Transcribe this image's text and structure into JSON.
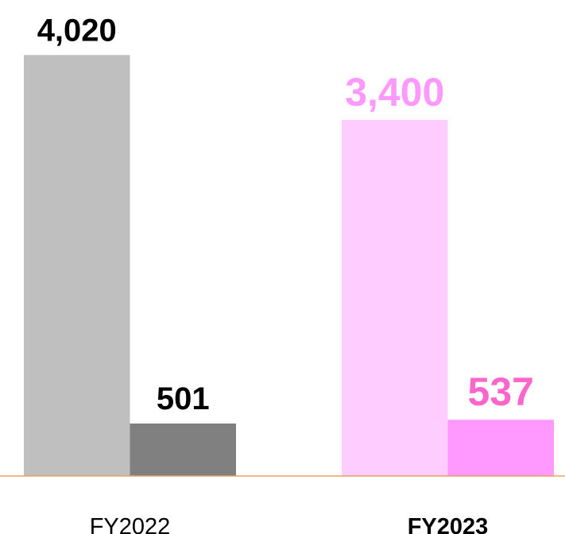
{
  "chart_data": {
    "type": "bar",
    "categories": [
      "FY2022",
      "FY2023"
    ],
    "category_bold": [
      false,
      true
    ],
    "series": [
      {
        "values": [
          4020,
          3400
        ],
        "value_labels": [
          "4,020",
          "3,400"
        ],
        "colors": [
          "#bfbfbf",
          "#ffccff"
        ],
        "label_colors": [
          "#000000",
          "#ff99ff"
        ]
      },
      {
        "values": [
          501,
          537
        ],
        "value_labels": [
          "501",
          "537"
        ],
        "colors": [
          "#808080",
          "#ff99ff"
        ],
        "label_colors": [
          "#000000",
          "#ff66cc"
        ]
      }
    ],
    "ylim": [
      0,
      4500
    ],
    "baseline_color": "#e8a060"
  }
}
